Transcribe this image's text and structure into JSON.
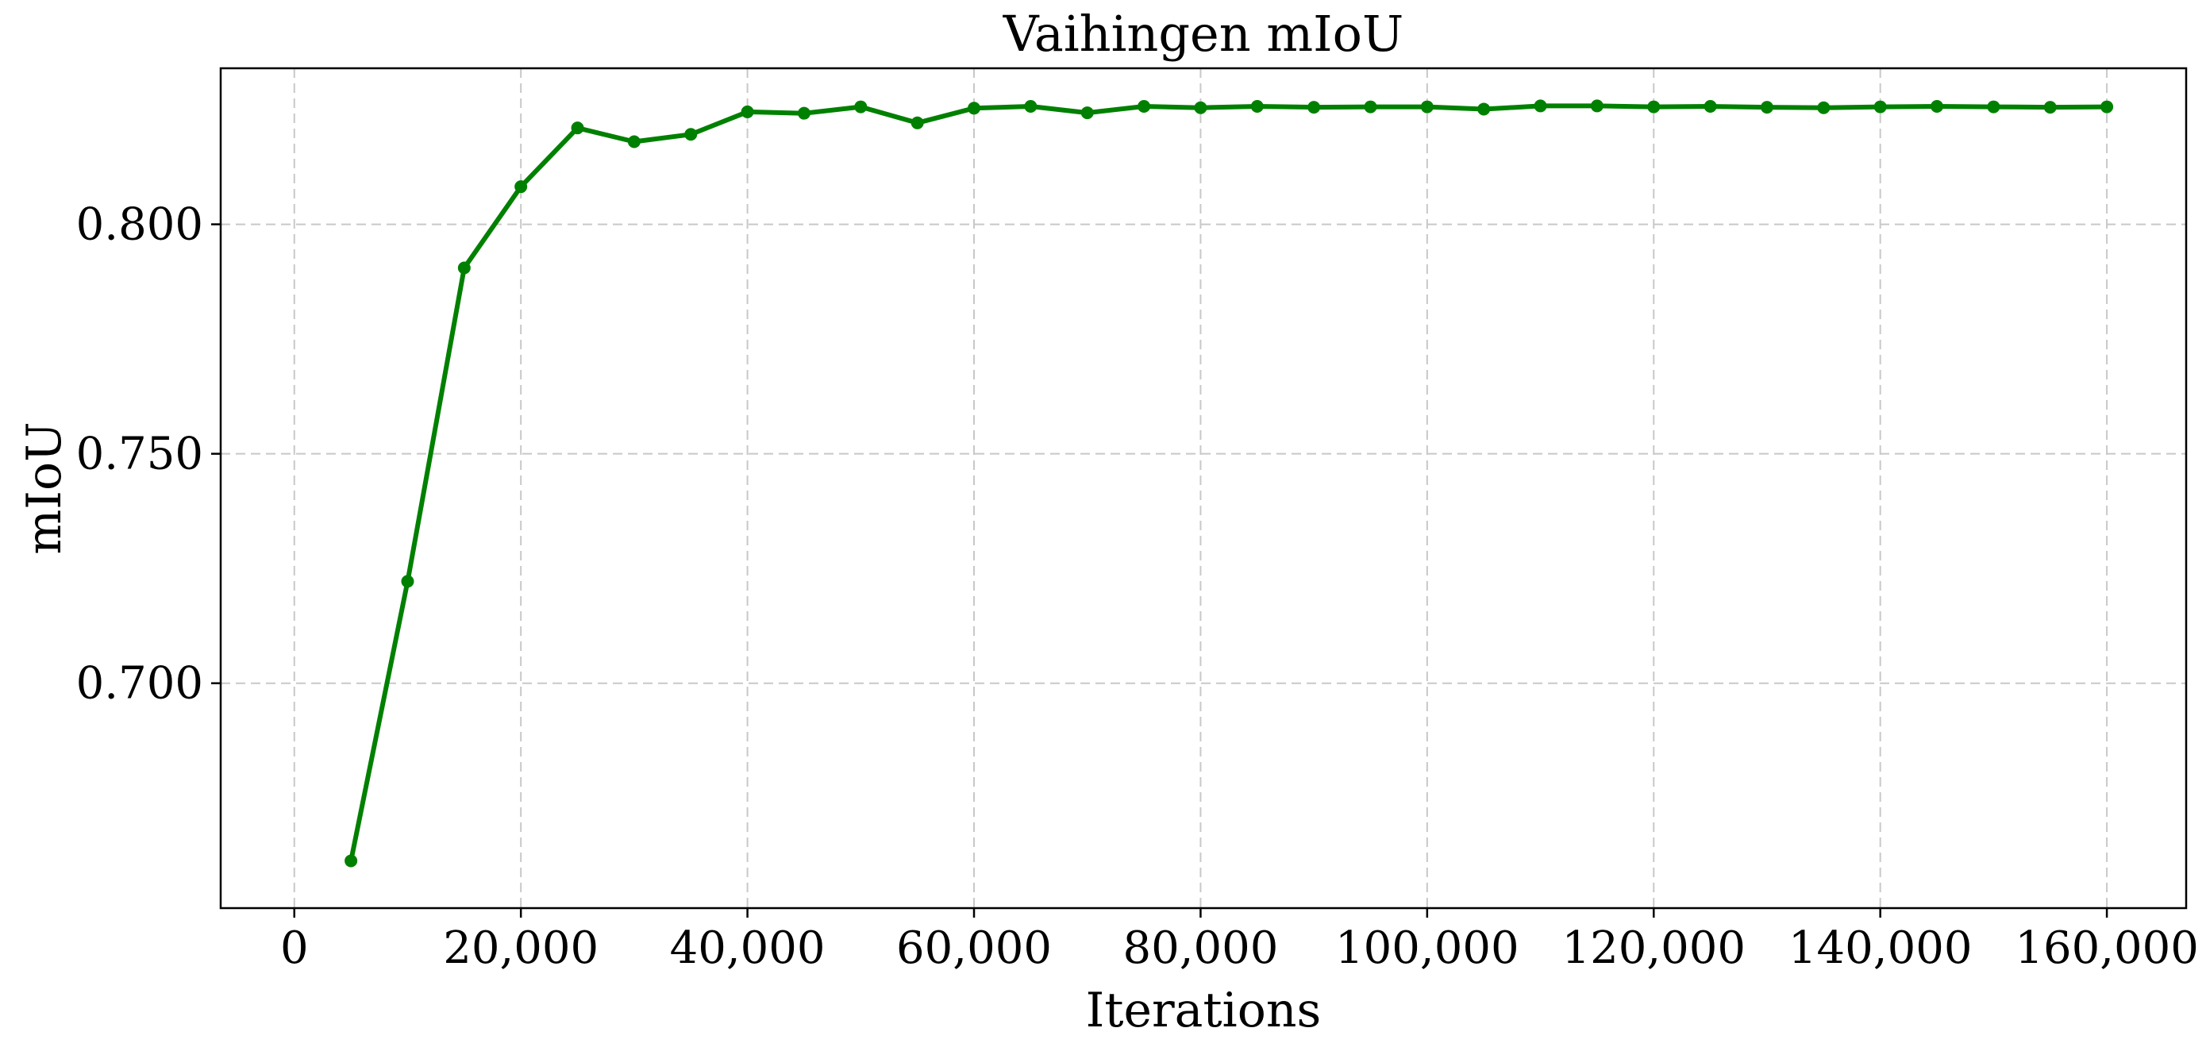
{
  "chart_data": {
    "type": "line",
    "title": "Vaihingen mIoU",
    "xlabel": "Iterations",
    "ylabel": "mIoU",
    "xlim": [
      -6500,
      167000
    ],
    "ylim": [
      0.651,
      0.834
    ],
    "x_ticks": [
      0,
      20000,
      40000,
      60000,
      80000,
      100000,
      120000,
      140000,
      160000
    ],
    "x_tick_labels": [
      "0",
      "20,000",
      "40,000",
      "60,000",
      "80,000",
      "100,000",
      "120,000",
      "140,000",
      "160,000"
    ],
    "y_ticks": [
      0.7,
      0.75,
      0.8
    ],
    "y_tick_labels": [
      "0.700",
      "0.750",
      "0.800"
    ],
    "grid": true,
    "series": [
      {
        "color": "#008000",
        "marker": "circle",
        "x": [
          5000,
          10000,
          15000,
          20000,
          25000,
          30000,
          35000,
          40000,
          45000,
          50000,
          55000,
          60000,
          65000,
          70000,
          75000,
          80000,
          85000,
          90000,
          95000,
          100000,
          105000,
          110000,
          115000,
          120000,
          125000,
          130000,
          135000,
          140000,
          145000,
          150000,
          155000,
          160000
        ],
        "y": [
          0.6613,
          0.7222,
          0.7905,
          0.8082,
          0.821,
          0.818,
          0.8196,
          0.8245,
          0.8242,
          0.8256,
          0.8221,
          0.8253,
          0.8257,
          0.8243,
          0.8257,
          0.8254,
          0.8257,
          0.8255,
          0.8256,
          0.8256,
          0.8251,
          0.8258,
          0.8258,
          0.8256,
          0.8257,
          0.8255,
          0.8254,
          0.8256,
          0.8257,
          0.8256,
          0.8255,
          0.8256
        ]
      }
    ]
  }
}
